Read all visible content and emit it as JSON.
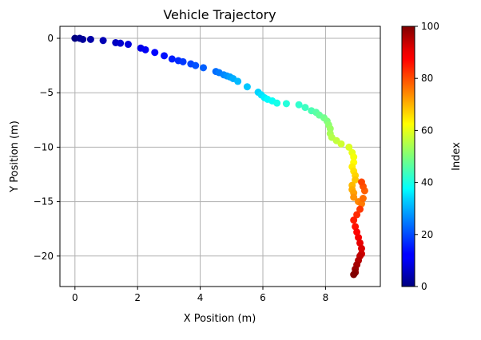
{
  "chart_data": [
    {
      "type": "scatter",
      "title": "Vehicle Trajectory",
      "xlabel": "X Position (m)",
      "ylabel": "Y Position (m)",
      "xlim": [
        -0.48,
        9.75
      ],
      "ylim": [
        -22.8,
        1.1
      ],
      "xticks": [
        0,
        2,
        4,
        6,
        8
      ],
      "yticks": [
        0,
        -5,
        -10,
        -15,
        -20
      ],
      "xtick_labels": [
        "0",
        "2",
        "4",
        "6",
        "8"
      ],
      "ytick_labels": [
        "0",
        "−5",
        "−10",
        "−15",
        "−20"
      ],
      "grid": true,
      "colormap": "jet",
      "color_by": "index",
      "x": [
        0.0,
        0.15,
        0.25,
        0.5,
        0.9,
        1.3,
        1.45,
        1.7,
        2.1,
        2.25,
        2.55,
        2.85,
        3.1,
        3.3,
        3.45,
        3.7,
        3.85,
        4.1,
        4.5,
        4.6,
        4.75,
        4.85,
        4.95,
        5.05,
        5.2,
        5.5,
        5.85,
        5.95,
        6.05,
        6.15,
        6.3,
        6.45,
        6.75,
        7.15,
        7.35,
        7.55,
        7.7,
        7.8,
        7.95,
        8.05,
        8.1,
        8.15,
        8.15,
        8.2,
        8.35,
        8.5,
        8.75,
        8.85,
        8.9,
        8.9,
        8.85,
        8.9,
        8.95,
        8.95,
        8.85,
        8.85,
        8.9,
        8.9,
        9.05,
        9.15,
        9.2,
        9.25,
        9.2,
        9.15,
        9.1,
        9.0,
        8.9,
        8.95,
        9.0,
        9.05,
        9.1,
        9.15,
        9.15,
        9.1,
        9.05,
        9.0,
        8.95,
        8.95,
        8.9
      ],
      "y": [
        0.0,
        0.0,
        -0.1,
        -0.1,
        -0.2,
        -0.4,
        -0.45,
        -0.55,
        -0.9,
        -1.05,
        -1.3,
        -1.6,
        -1.9,
        -2.05,
        -2.15,
        -2.35,
        -2.5,
        -2.7,
        -3.05,
        -3.15,
        -3.35,
        -3.45,
        -3.55,
        -3.7,
        -3.95,
        -4.45,
        -4.95,
        -5.2,
        -5.45,
        -5.6,
        -5.75,
        -5.95,
        -6.0,
        -6.1,
        -6.35,
        -6.65,
        -6.8,
        -7.05,
        -7.3,
        -7.6,
        -7.95,
        -8.3,
        -8.75,
        -9.1,
        -9.4,
        -9.7,
        -10.0,
        -10.5,
        -10.9,
        -11.4,
        -11.8,
        -12.2,
        -12.6,
        -13.0,
        -13.5,
        -13.9,
        -14.2,
        -14.6,
        -15.0,
        -15.2,
        -14.7,
        -14.0,
        -13.6,
        -13.2,
        -15.7,
        -16.2,
        -16.7,
        -17.3,
        -17.8,
        -18.3,
        -18.8,
        -19.3,
        -19.8,
        -20.0,
        -20.4,
        -20.8,
        -21.2,
        -21.5,
        -21.7
      ],
      "colorbar": {
        "label": "Index",
        "min": 0,
        "max": 100,
        "ticks": [
          0,
          20,
          40,
          60,
          80,
          100
        ],
        "tick_labels": [
          "0",
          "20",
          "40",
          "60",
          "80",
          "100"
        ]
      }
    }
  ]
}
